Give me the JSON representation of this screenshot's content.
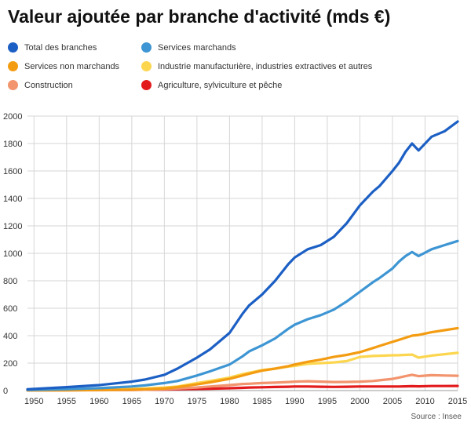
{
  "title": "Valeur ajoutée par branche d'activité (mds €)",
  "source": "Source : Insee",
  "chart_data": {
    "type": "line",
    "title": "Valeur ajoutée par branche d'activité (mds €)",
    "xlabel": "",
    "ylabel": "",
    "xlim": [
      1949,
      2015
    ],
    "ylim": [
      0,
      2000
    ],
    "grid": true,
    "legend_position": "top",
    "x_ticks": [
      "1950",
      "1955",
      "1960",
      "1965",
      "1970",
      "1975",
      "1980",
      "1985",
      "1990",
      "1995",
      "2000",
      "2005",
      "2010",
      "2015"
    ],
    "y_ticks": [
      "0",
      "200",
      "400",
      "600",
      "800",
      "1000",
      "1200",
      "1400",
      "1600",
      "1800",
      "2000"
    ],
    "x": [
      1949,
      1955,
      1960,
      1965,
      1967,
      1970,
      1972,
      1975,
      1977,
      1980,
      1982,
      1983,
      1985,
      1987,
      1989,
      1990,
      1992,
      1994,
      1996,
      1998,
      2000,
      2002,
      2003,
      2005,
      2006,
      2007,
      2008,
      2009,
      2011,
      2013,
      2015
    ],
    "series": [
      {
        "name": "Total des branches",
        "color": "#1c5fc4",
        "values": [
          10,
          25,
          40,
          65,
          80,
          115,
          160,
          240,
          300,
          420,
          560,
          620,
          700,
          800,
          920,
          970,
          1030,
          1060,
          1120,
          1220,
          1350,
          1450,
          1490,
          1600,
          1660,
          1740,
          1800,
          1750,
          1850,
          1890,
          1960
        ]
      },
      {
        "name": "Services marchands",
        "color": "#3d95d3",
        "values": [
          5,
          10,
          18,
          30,
          38,
          55,
          70,
          110,
          140,
          190,
          250,
          285,
          330,
          380,
          450,
          480,
          520,
          550,
          590,
          650,
          720,
          790,
          820,
          890,
          940,
          980,
          1010,
          980,
          1030,
          1060,
          1090
        ]
      },
      {
        "name": "Services non marchands",
        "color": "#f39c12",
        "values": [
          1,
          2,
          4,
          7,
          9,
          15,
          25,
          45,
          60,
          85,
          110,
          122,
          145,
          160,
          178,
          190,
          210,
          225,
          245,
          260,
          280,
          310,
          325,
          355,
          370,
          385,
          400,
          405,
          425,
          440,
          455
        ]
      },
      {
        "name": "Industrie manufacturière, industries extractives et autres",
        "color": "#fcd64f",
        "values": [
          3,
          5,
          8,
          12,
          15,
          22,
          30,
          55,
          70,
          95,
          120,
          130,
          150,
          160,
          175,
          180,
          195,
          200,
          205,
          215,
          245,
          252,
          254,
          257,
          258,
          260,
          262,
          240,
          255,
          265,
          275
        ]
      },
      {
        "name": "Construction",
        "color": "#f2946d",
        "values": [
          1,
          2,
          3,
          5,
          6,
          10,
          15,
          22,
          30,
          40,
          48,
          50,
          55,
          58,
          62,
          65,
          68,
          65,
          62,
          63,
          65,
          70,
          75,
          85,
          95,
          105,
          115,
          105,
          112,
          110,
          108
        ]
      },
      {
        "name": "Agriculture, sylviculture et pêche",
        "color": "#e31a1c",
        "values": [
          2,
          3,
          4,
          5,
          6,
          8,
          10,
          12,
          14,
          17,
          20,
          22,
          24,
          26,
          28,
          30,
          30,
          28,
          27,
          28,
          30,
          30,
          30,
          30,
          30,
          31,
          32,
          31,
          33,
          33,
          34
        ]
      }
    ]
  }
}
